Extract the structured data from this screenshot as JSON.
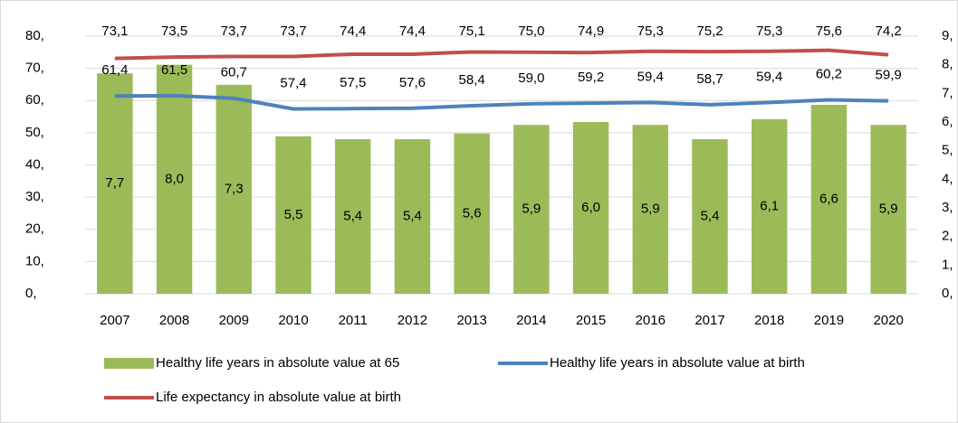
{
  "chart_data": {
    "type": "bar",
    "categories": [
      "2007",
      "2008",
      "2009",
      "2010",
      "2011",
      "2012",
      "2013",
      "2014",
      "2015",
      "2016",
      "2017",
      "2018",
      "2019",
      "2020"
    ],
    "series": [
      {
        "name": "Healthy life years in absolute value at 65",
        "type": "bar",
        "color": "#9bbb59",
        "axis": "y2",
        "values": [
          7.7,
          8.0,
          7.3,
          5.5,
          5.4,
          5.4,
          5.6,
          5.9,
          6.0,
          5.9,
          5.4,
          6.1,
          6.6,
          5.9
        ],
        "value_labels": [
          "7,7",
          "8,0",
          "7,3",
          "5,5",
          "5,4",
          "5,4",
          "5,6",
          "5,9",
          "6,0",
          "5,9",
          "5,4",
          "6,1",
          "6,6",
          "5,9"
        ]
      },
      {
        "name": "Healthy life years in absolute value at birth",
        "type": "line",
        "color": "#4f81bd",
        "values": [
          61.4,
          61.5,
          60.7,
          57.4,
          57.5,
          57.6,
          58.4,
          59.0,
          59.2,
          59.4,
          58.7,
          59.4,
          60.2,
          59.9
        ],
        "value_labels": [
          "61,4",
          "61,5",
          "60,7",
          "57,4",
          "57,5",
          "57,6",
          "58,4",
          "59,0",
          "59,2",
          "59,4",
          "58,7",
          "59,4",
          "60,2",
          "59,9"
        ]
      },
      {
        "name": "Life expectancy in absolute value at birth",
        "type": "line",
        "color": "#c0504d",
        "values": [
          73.1,
          73.5,
          73.7,
          73.7,
          74.4,
          74.4,
          75.1,
          75.0,
          74.9,
          75.3,
          75.2,
          75.3,
          75.6,
          74.2
        ],
        "value_labels": [
          "73,1",
          "73,5",
          "73,7",
          "73,7",
          "74,4",
          "74,4",
          "75,1",
          "75,0",
          "74,9",
          "75,3",
          "75,2",
          "75,3",
          "75,6",
          "74,2"
        ]
      }
    ],
    "ylim": [
      0,
      80
    ],
    "yticks": [
      {
        "value": 0,
        "label": "0,"
      },
      {
        "value": 10,
        "label": "10,"
      },
      {
        "value": 20,
        "label": "20,"
      },
      {
        "value": 30,
        "label": "30,"
      },
      {
        "value": 40,
        "label": "40,"
      },
      {
        "value": 50,
        "label": "50,"
      },
      {
        "value": 60,
        "label": "60,"
      },
      {
        "value": 70,
        "label": "70,"
      },
      {
        "value": 80,
        "label": "80,"
      }
    ],
    "y2lim": [
      0,
      9
    ],
    "y2ticks": [
      {
        "value": 0,
        "label": "0,"
      },
      {
        "value": 1,
        "label": "1,"
      },
      {
        "value": 2,
        "label": "2,"
      },
      {
        "value": 3,
        "label": "3,"
      },
      {
        "value": 4,
        "label": "4,"
      },
      {
        "value": 5,
        "label": "5,"
      },
      {
        "value": 6,
        "label": "6,"
      },
      {
        "value": 7,
        "label": "7,"
      },
      {
        "value": 8,
        "label": "8,"
      },
      {
        "value": 9,
        "label": "9,"
      }
    ],
    "grid": true
  }
}
